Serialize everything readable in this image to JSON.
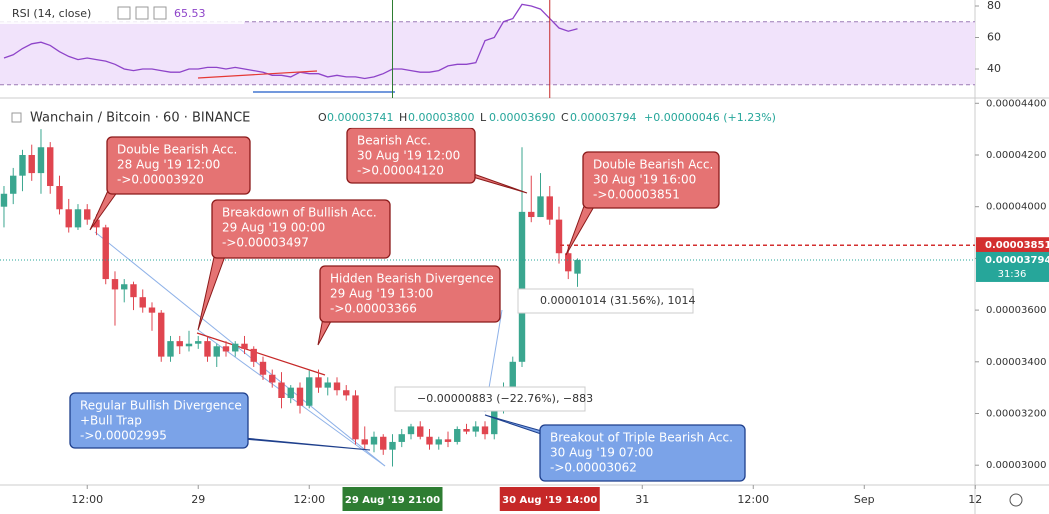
{
  "chart_data": [
    {
      "type": "candlestick",
      "title": "Wanchain / Bitcoin · 60 · BINANCE",
      "ohlc": [
        {
          "label": "O",
          "value": "0.00003741"
        },
        {
          "label": "H",
          "value": "0.00003800"
        },
        {
          "label": "L",
          "value": "0.00003690"
        },
        {
          "label": "C",
          "value": "0.00003794"
        }
      ],
      "change": "+0.00000046 (+1.23%)",
      "up_color": "#3aa68f",
      "down_color": "#e0454f",
      "open": [
        4e-05,
        4.05e-05,
        4.12e-05,
        4.2e-05,
        4.13e-05,
        4.23e-05,
        4.08e-05,
        3.99e-05,
        3.92e-05,
        3.99e-05,
        3.95e-05,
        3.92e-05,
        3.72e-05,
        3.68e-05,
        3.7e-05,
        3.65e-05,
        3.61e-05,
        3.59e-05,
        3.42e-05,
        3.48e-05,
        3.46e-05,
        3.47e-05,
        3.48e-05,
        3.42e-05,
        3.46e-05,
        3.44e-05,
        3.47e-05,
        3.45e-05,
        3.4e-05,
        3.35e-05,
        3.32e-05,
        3.26e-05,
        3.3e-05,
        3.23e-05,
        3.34e-05,
        3.3e-05,
        3.32e-05,
        3.29e-05,
        3.27e-05,
        3.1e-05,
        3.08e-05,
        3.11e-05,
        3.06e-05,
        3.09e-05,
        3.12e-05,
        3.15e-05,
        3.11e-05,
        3.08e-05,
        3.1e-05,
        3.09e-05,
        3.14e-05,
        3.13e-05,
        3.15e-05,
        3.12e-05,
        3.22e-05,
        3.3e-05,
        3.4e-05,
        3.98e-05,
        3.96e-05,
        4.04e-05,
        3.95e-05,
        3.82e-05,
        3.741e-05
      ],
      "high": [
        4.08e-05,
        4.15e-05,
        4.22e-05,
        4.24e-05,
        4.3e-05,
        4.25e-05,
        4.12e-05,
        4.03e-05,
        4.01e-05,
        4.01e-05,
        3.97e-05,
        3.93e-05,
        3.75e-05,
        3.72e-05,
        3.71e-05,
        3.68e-05,
        3.63e-05,
        3.6e-05,
        3.5e-05,
        3.5e-05,
        3.52e-05,
        3.5e-05,
        3.497e-05,
        3.47e-05,
        3.48e-05,
        3.48e-05,
        3.5e-05,
        3.46e-05,
        3.42e-05,
        3.37e-05,
        3.36e-05,
        3.31e-05,
        3.32e-05,
        3.366e-05,
        3.37e-05,
        3.34e-05,
        3.34e-05,
        3.31e-05,
        3.29e-05,
        3.15e-05,
        3.13e-05,
        3.12e-05,
        3.12e-05,
        3.14e-05,
        3.16e-05,
        3.17e-05,
        3.14e-05,
        3.11e-05,
        3.13e-05,
        3.15e-05,
        3.16e-05,
        3.17e-05,
        3.17e-05,
        3.24e-05,
        3.32e-05,
        3.42e-05,
        4.23e-05,
        4.12e-05,
        4.13e-05,
        4.08e-05,
        4e-05,
        3.851e-05,
        3.8e-05
      ],
      "low": [
        3.92e-05,
        4.01e-05,
        4.06e-05,
        4.1e-05,
        4.05e-05,
        4.05e-05,
        3.97e-05,
        3.9e-05,
        3.91e-05,
        3.93e-05,
        3.89e-05,
        3.7e-05,
        3.54e-05,
        3.63e-05,
        3.6e-05,
        3.59e-05,
        3.52e-05,
        3.4e-05,
        3.4e-05,
        3.43e-05,
        3.44e-05,
        3.45e-05,
        3.4e-05,
        3.38e-05,
        3.42e-05,
        3.42e-05,
        3.43e-05,
        3.38e-05,
        3.33e-05,
        3.3e-05,
        3.22e-05,
        3.24e-05,
        3.2e-05,
        3.22e-05,
        3.28e-05,
        3.27e-05,
        3.27e-05,
        3.25e-05,
        3.08e-05,
        3.06e-05,
        3.05e-05,
        3.04e-05,
        2.995e-05,
        3.07e-05,
        3.1e-05,
        3.1e-05,
        3.06e-05,
        3.06e-05,
        3.07e-05,
        3.08e-05,
        3.12e-05,
        3.11e-05,
        3.1e-05,
        3.1e-05,
        3.2e-05,
        3.28e-05,
        3.38e-05,
        3.94e-05,
        3.96e-05,
        3.93e-05,
        3.78e-05,
        3.72e-05,
        3.69e-05
      ],
      "close": [
        4.05e-05,
        4.12e-05,
        4.2e-05,
        4.13e-05,
        4.23e-05,
        4.08e-05,
        3.99e-05,
        3.92e-05,
        3.99e-05,
        3.95e-05,
        3.92e-05,
        3.72e-05,
        3.68e-05,
        3.7e-05,
        3.65e-05,
        3.61e-05,
        3.59e-05,
        3.42e-05,
        3.48e-05,
        3.46e-05,
        3.47e-05,
        3.48e-05,
        3.42e-05,
        3.46e-05,
        3.44e-05,
        3.47e-05,
        3.45e-05,
        3.4e-05,
        3.35e-05,
        3.32e-05,
        3.26e-05,
        3.3e-05,
        3.23e-05,
        3.34e-05,
        3.3e-05,
        3.32e-05,
        3.29e-05,
        3.27e-05,
        3.1e-05,
        3.08e-05,
        3.11e-05,
        3.06e-05,
        3.09e-05,
        3.12e-05,
        3.15e-05,
        3.11e-05,
        3.08e-05,
        3.1e-05,
        3.09e-05,
        3.14e-05,
        3.13e-05,
        3.15e-05,
        3.12e-05,
        3.22e-05,
        3.3e-05,
        3.4e-05,
        3.98e-05,
        3.96e-05,
        4.04e-05,
        3.95e-05,
        3.82e-05,
        3.75e-05,
        3.794e-05
      ],
      "xlim": [
        -0.43,
        104.97
      ],
      "ylim": [
        2.9234e-05,
        4.4205e-05
      ],
      "yticks": [
        {
          "value": 4.4e-05,
          "label": "0.00004400"
        },
        {
          "value": 4.2e-05,
          "label": "0.00004200"
        },
        {
          "value": 4e-05,
          "label": "0.00004000"
        },
        {
          "value": 3.8e-05,
          "label": "0.00003800"
        },
        {
          "value": 3.6e-05,
          "label": "0.00003600"
        },
        {
          "value": 3.4e-05,
          "label": "0.00003400"
        },
        {
          "value": 3.2e-05,
          "label": "0.00003200"
        },
        {
          "value": 3e-05,
          "label": "0.00003000"
        }
      ],
      "xticks": [
        {
          "value": 9,
          "label": "12:00"
        },
        {
          "value": 21,
          "label": "29"
        },
        {
          "value": 33,
          "label": "12:00"
        },
        {
          "value": 69,
          "label": "31"
        },
        {
          "value": 81,
          "label": "12:00"
        },
        {
          "value": 93,
          "label": "Sep"
        },
        {
          "value": 105,
          "label": "12"
        }
      ],
      "highlights": [
        {
          "value": 42,
          "label": "29 Aug '19   21:00",
          "color": "#2e7d32"
        },
        {
          "value": 59,
          "label": "30 Aug '19   14:00",
          "color": "#c62828"
        }
      ],
      "level": {
        "value": 3.851e-05,
        "label": "0.00003851",
        "color": "#d32f2f"
      },
      "last_price": {
        "value": 3.794e-05,
        "label": "0.00003794",
        "color": "#26a69a",
        "countdown": "31:36"
      },
      "measures": [
        "0.00001014 (31.56%), 1014",
        "−0.00000883 (−22.76%), −883"
      ],
      "annotations": [
        {
          "lines": [
            "Double Bearish Acc.",
            "28 Aug '19 12:00",
            "->0.00003920"
          ],
          "color": "red"
        },
        {
          "lines": [
            "Breakdown of Bullish Acc.",
            "29 Aug '19 00:00",
            "->0.00003497"
          ],
          "color": "red"
        },
        {
          "lines": [
            "Hidden Bearish Divergence",
            "29 Aug '19 13:00",
            "->0.00003366"
          ],
          "color": "red"
        },
        {
          "lines": [
            "Bearish Acc.",
            "30 Aug '19 12:00",
            "->0.00004120"
          ],
          "color": "red"
        },
        {
          "lines": [
            "Double Bearish Acc.",
            "30 Aug '19 16:00",
            "->0.00003851"
          ],
          "color": "red"
        },
        {
          "lines": [
            "Regular Bullish Divergence",
            "+Bull Trap",
            "->0.00002995"
          ],
          "color": "blue"
        },
        {
          "lines": [
            "Breakout of Triple Bearish Acc.",
            "30 Aug '19 07:00",
            "->0.00003062"
          ],
          "color": "blue"
        }
      ]
    },
    {
      "type": "line",
      "title": "RSI (14, close)",
      "color": "#8e44c9",
      "values": [
        47,
        49,
        53,
        56,
        57,
        55,
        51,
        48,
        46,
        47,
        46,
        45,
        43,
        40,
        39,
        40,
        40,
        39,
        38,
        38,
        40,
        40,
        41,
        41,
        40,
        41,
        40,
        39,
        38,
        36,
        36,
        35,
        38,
        37,
        37,
        35,
        36,
        35,
        35,
        34,
        35,
        37,
        40,
        40,
        39,
        38,
        38,
        39,
        42,
        43,
        43,
        44,
        58,
        60,
        70,
        72,
        81,
        80,
        78,
        72,
        66,
        64,
        65.53
      ],
      "xlim": [
        -0.43,
        104.97
      ],
      "ylim": [
        21.6,
        83.8
      ],
      "yticks": [
        80,
        60,
        40
      ],
      "band": [
        30,
        70
      ]
    }
  ]
}
